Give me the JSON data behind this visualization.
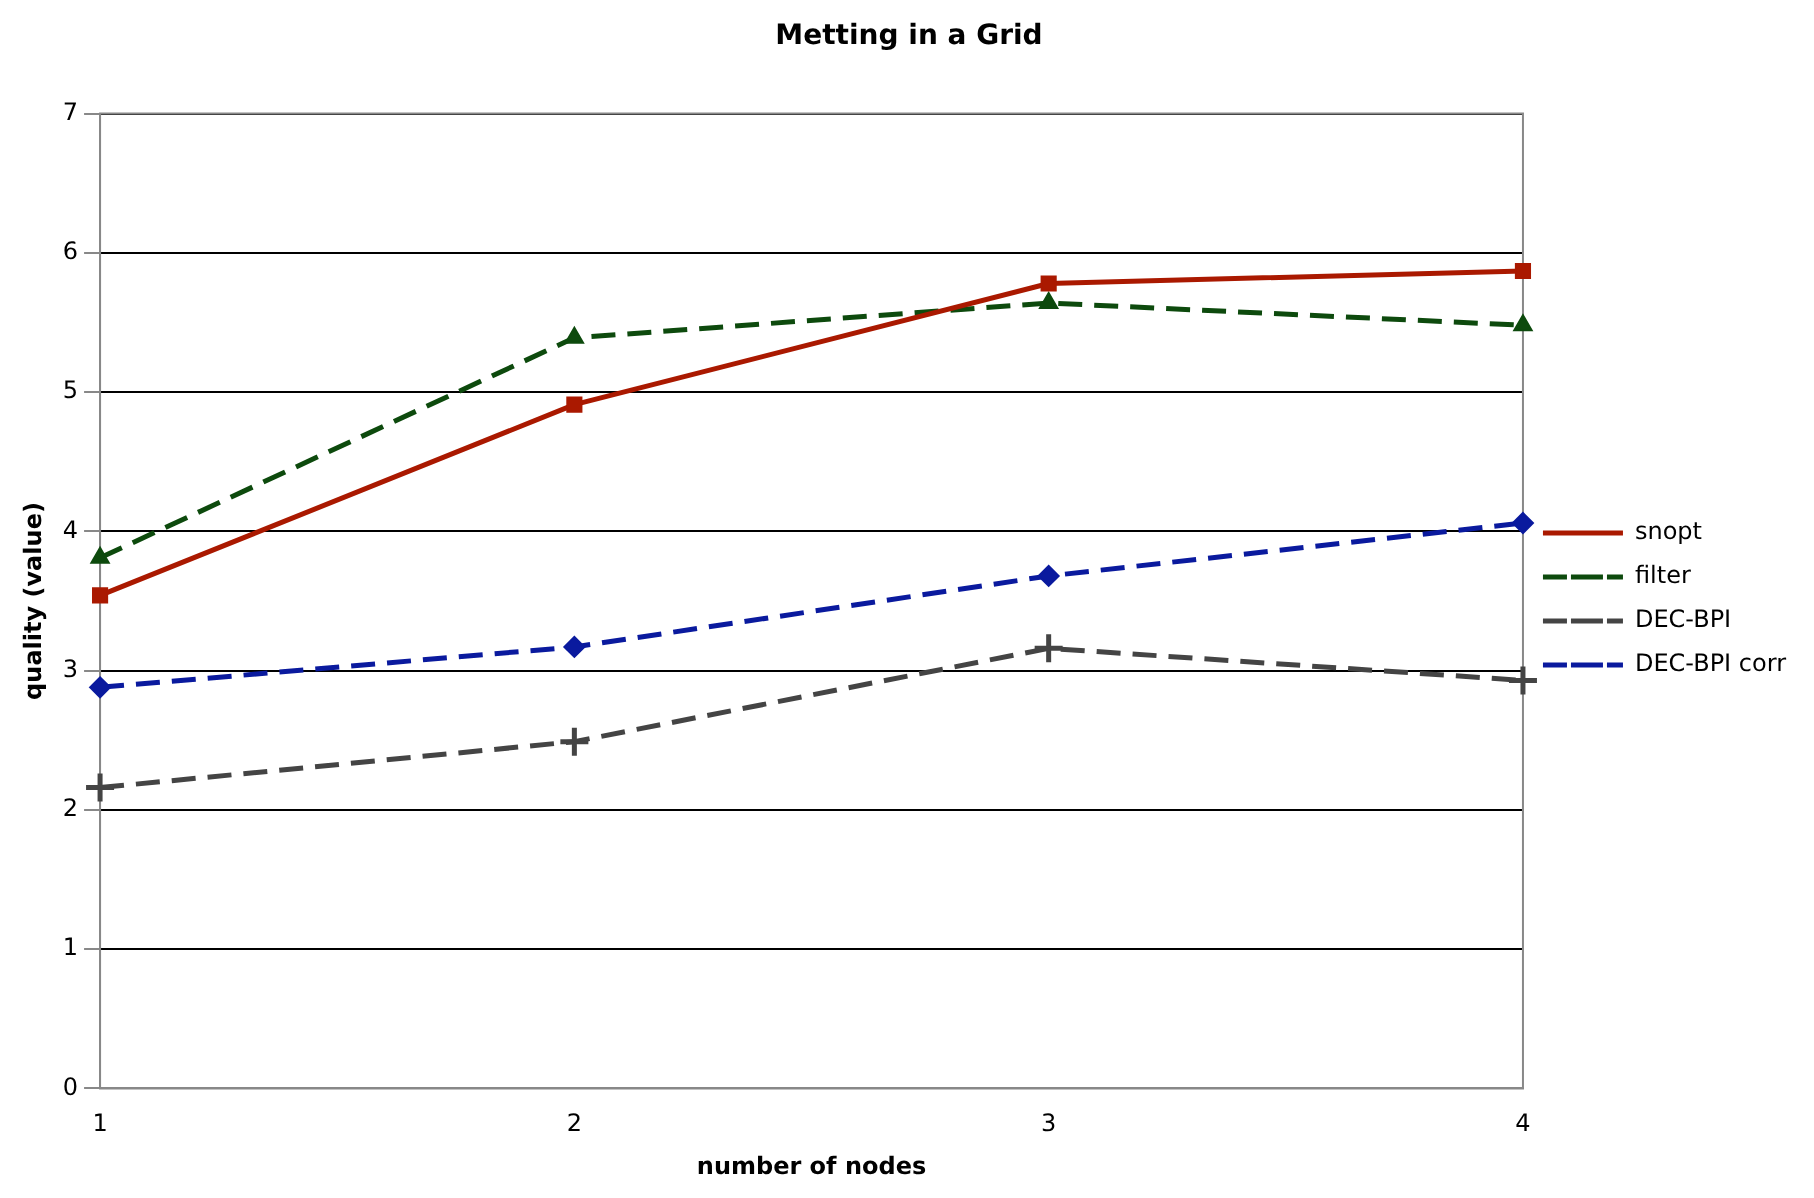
{
  "chart_data": {
    "type": "line",
    "title": "Metting in a Grid",
    "xlabel": "number of nodes",
    "ylabel": "quality (value)",
    "x": [
      1,
      2,
      3,
      4
    ],
    "xlim": [
      1,
      4
    ],
    "xticks": [
      1,
      2,
      3,
      4
    ],
    "ylim": [
      0,
      7
    ],
    "yticks": [
      0,
      1,
      2,
      3,
      4,
      5,
      6,
      7
    ],
    "grid": "y",
    "legend": "right",
    "series": [
      {
        "name": "snopt",
        "color": "#aa1900",
        "values": [
          3.54,
          4.91,
          5.78,
          5.87
        ],
        "marker": "square",
        "line_style": "solid"
      },
      {
        "name": "filter",
        "color": "#0d4a0d",
        "values": [
          3.81,
          5.39,
          5.64,
          5.48
        ],
        "marker": "triangle",
        "line_style": "dashed"
      },
      {
        "name": "DEC-BPI",
        "color": "#444444",
        "values": [
          2.16,
          2.49,
          3.16,
          2.93
        ],
        "marker": "cross",
        "line_style": "dashed"
      },
      {
        "name": "DEC-BPI corr",
        "color": "#0a1a9e",
        "values": [
          2.88,
          3.17,
          3.68,
          4.06
        ],
        "marker": "diamond",
        "line_style": "dashed"
      }
    ]
  }
}
